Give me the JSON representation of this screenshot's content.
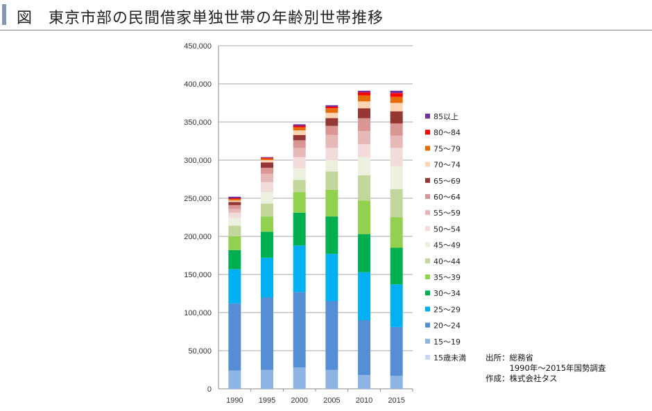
{
  "title": "図　東京市部の民間借家単独世帯の年齢別世帯推移",
  "source": {
    "line1": "出所：総務省",
    "line2": "　　　1990年～2015年国勢調査",
    "line3": "作成：株式会社タス"
  },
  "chart_data": {
    "type": "bar",
    "stacked": true,
    "categories": [
      "1990",
      "1995",
      "2000",
      "2005",
      "2010",
      "2015"
    ],
    "ylim": [
      0,
      450000
    ],
    "yticks": [
      "0",
      "50,000",
      "100,000",
      "150,000",
      "200,000",
      "250,000",
      "300,000",
      "350,000",
      "400,000",
      "450,000"
    ],
    "grid": true,
    "legend_placement": "right",
    "series": [
      {
        "name": "15歳未満",
        "color": "#c5d9f1",
        "values": [
          0,
          0,
          0,
          0,
          0,
          0
        ]
      },
      {
        "name": "15～19",
        "color": "#8eb4e3",
        "values": [
          24000,
          25000,
          28000,
          25000,
          18000,
          17000
        ]
      },
      {
        "name": "20～24",
        "color": "#558ed5",
        "values": [
          88000,
          95000,
          99000,
          90000,
          72000,
          64000
        ]
      },
      {
        "name": "25～29",
        "color": "#00b0f0",
        "values": [
          45000,
          52000,
          61000,
          62000,
          63000,
          56000
        ]
      },
      {
        "name": "30～34",
        "color": "#00b050",
        "values": [
          25000,
          34000,
          43000,
          49000,
          50000,
          48000
        ]
      },
      {
        "name": "35～39",
        "color": "#92d050",
        "values": [
          18000,
          20000,
          27000,
          35000,
          44000,
          40000
        ]
      },
      {
        "name": "40～44",
        "color": "#c3d69b",
        "values": [
          14000,
          17000,
          16000,
          24000,
          33000,
          37000
        ]
      },
      {
        "name": "45～49",
        "color": "#ebf1de",
        "values": [
          10000,
          15000,
          15000,
          15000,
          24000,
          30000
        ]
      },
      {
        "name": "50～54",
        "color": "#f2dcdb",
        "values": [
          7000,
          13000,
          15000,
          16000,
          17000,
          24000
        ]
      },
      {
        "name": "55～59",
        "color": "#e6b9b8",
        "values": [
          5000,
          11000,
          12000,
          17000,
          17000,
          16000
        ]
      },
      {
        "name": "60～64",
        "color": "#d99694",
        "values": [
          5000,
          8000,
          10000,
          12000,
          17000,
          16000
        ]
      },
      {
        "name": "65～69",
        "color": "#953735",
        "values": [
          4000,
          7000,
          7000,
          10000,
          13000,
          16000
        ]
      },
      {
        "name": "70～74",
        "color": "#fcd5b5",
        "values": [
          2000,
          3000,
          6000,
          7000,
          9000,
          11000
        ]
      },
      {
        "name": "75～79",
        "color": "#e46c0a",
        "values": [
          2000,
          2000,
          4000,
          6000,
          8000,
          8000
        ]
      },
      {
        "name": "80～84",
        "color": "#ff0000",
        "values": [
          1000,
          1000,
          2000,
          2000,
          4000,
          5000
        ]
      },
      {
        "name": "85以上",
        "color": "#7030a0",
        "values": [
          2000,
          1000,
          2000,
          2000,
          2000,
          3000
        ]
      }
    ]
  }
}
